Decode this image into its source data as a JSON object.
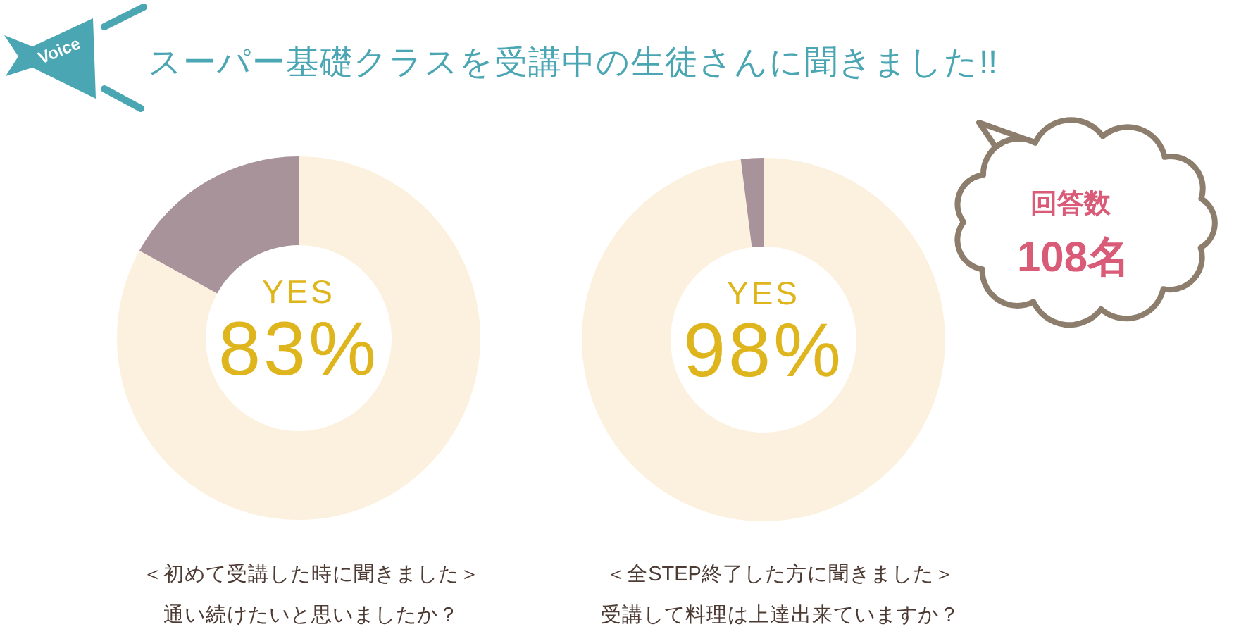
{
  "chart_data": [
    {
      "type": "other",
      "title": "スーパー基礎クラスを受講中の生徒さんに聞きました!!",
      "annotations": [
        "Voice"
      ]
    },
    {
      "type": "donut",
      "title": "＜初めて受講した時に聞きました＞",
      "subtitle": "通い続けたいと思いましたか？",
      "categories": [
        "YES",
        null
      ],
      "values": [
        83,
        17
      ],
      "colors": [
        "#fcf1de",
        "#a8939b"
      ],
      "value_labels": [
        "83%",
        null
      ]
    },
    {
      "type": "donut",
      "title": "＜全STEP終了した方に聞きました＞",
      "subtitle": "受講して料理は上達出来ていますか？",
      "categories": [
        "YES",
        null
      ],
      "values": [
        98,
        2
      ],
      "colors": [
        "#fcf1de",
        "#a8939b"
      ],
      "value_labels": [
        "98%",
        null
      ]
    },
    {
      "type": "other",
      "annotations": [
        "回答数",
        "108名"
      ]
    }
  ]
}
